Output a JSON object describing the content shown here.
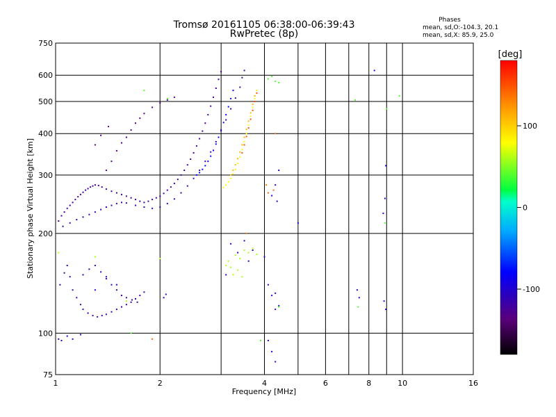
{
  "chart_data": {
    "type": "scatter",
    "title": "Tromsø 20161105 06:38:00-06:39:43",
    "subtitle": "RwPretec (8p)",
    "phases_header": "Phases",
    "phases_o": "mean, sd,O:-104.3, 20.1",
    "phases_x": "mean, sd,X:  85.9, 25.0",
    "xlabel": "Frequency [MHz]",
    "ylabel": "Stationary phase Virtual Height [km]",
    "x_scale": "log",
    "y_scale": "log",
    "xlim": [
      1,
      16
    ],
    "ylim": [
      75,
      750
    ],
    "x_ticks": [
      1,
      2,
      4,
      6,
      8,
      10,
      16
    ],
    "x_minor": [
      3,
      5,
      7,
      9
    ],
    "y_ticks": [
      75,
      100,
      200,
      300,
      400,
      500,
      600,
      750
    ],
    "grid": true,
    "colorbar": {
      "label": "[deg]",
      "range": [
        -180,
        180
      ],
      "ticks": [
        100,
        0,
        -100
      ]
    },
    "series": [
      {
        "phase": -120,
        "points": [
          [
            1.02,
            218
          ],
          [
            1.04,
            226
          ],
          [
            1.06,
            232
          ],
          [
            1.08,
            238
          ],
          [
            1.1,
            243
          ],
          [
            1.12,
            248
          ],
          [
            1.14,
            253
          ],
          [
            1.16,
            258
          ],
          [
            1.18,
            262
          ],
          [
            1.2,
            266
          ],
          [
            1.22,
            270
          ],
          [
            1.24,
            273
          ],
          [
            1.26,
            276
          ],
          [
            1.28,
            278
          ],
          [
            1.3,
            280
          ],
          [
            1.33,
            279
          ],
          [
            1.36,
            276
          ],
          [
            1.4,
            272
          ],
          [
            1.45,
            268
          ],
          [
            1.5,
            265
          ],
          [
            1.55,
            262
          ],
          [
            1.6,
            259
          ],
          [
            1.65,
            256
          ],
          [
            1.7,
            253
          ],
          [
            1.75,
            250
          ],
          [
            1.8,
            248
          ],
          [
            1.85,
            250
          ],
          [
            1.9,
            253
          ],
          [
            1.95,
            256
          ],
          [
            2.0,
            259
          ],
          [
            2.05,
            264
          ],
          [
            2.1,
            270
          ],
          [
            2.15,
            276
          ],
          [
            2.2,
            283
          ],
          [
            2.25,
            291
          ],
          [
            2.3,
            300
          ],
          [
            2.35,
            310
          ],
          [
            2.4,
            322
          ],
          [
            2.45,
            335
          ],
          [
            2.5,
            350
          ],
          [
            2.55,
            367
          ],
          [
            2.6,
            386
          ],
          [
            2.65,
            407
          ],
          [
            2.7,
            430
          ],
          [
            2.75,
            456
          ],
          [
            2.8,
            484
          ],
          [
            2.85,
            515
          ],
          [
            2.9,
            548
          ],
          [
            2.95,
            583
          ],
          [
            3.0,
            615
          ]
        ]
      },
      {
        "phase": -115,
        "points": [
          [
            1.05,
            210
          ],
          [
            1.1,
            215
          ],
          [
            1.15,
            220
          ],
          [
            1.2,
            224
          ],
          [
            1.25,
            228
          ],
          [
            1.3,
            232
          ],
          [
            1.35,
            236
          ],
          [
            1.4,
            240
          ],
          [
            1.45,
            243
          ],
          [
            1.5,
            246
          ],
          [
            1.55,
            248
          ],
          [
            1.6,
            247
          ],
          [
            1.7,
            243
          ],
          [
            1.8,
            240
          ],
          [
            1.9,
            238
          ],
          [
            2.0,
            240
          ],
          [
            2.1,
            246
          ],
          [
            2.2,
            254
          ],
          [
            2.3,
            265
          ],
          [
            2.4,
            278
          ],
          [
            2.5,
            293
          ],
          [
            2.6,
            310
          ],
          [
            2.7,
            330
          ],
          [
            2.8,
            352
          ],
          [
            2.9,
            378
          ],
          [
            3.0,
            408
          ],
          [
            3.1,
            440
          ],
          [
            3.2,
            475
          ],
          [
            3.3,
            512
          ],
          [
            3.4,
            552
          ],
          [
            3.45,
            590
          ],
          [
            3.5,
            620
          ]
        ]
      },
      {
        "phase": -80,
        "points": [
          [
            2.55,
            300
          ],
          [
            2.6,
            305
          ],
          [
            2.65,
            312
          ],
          [
            2.7,
            320
          ],
          [
            2.75,
            330
          ],
          [
            2.8,
            342
          ],
          [
            2.85,
            356
          ],
          [
            2.9,
            372
          ],
          [
            2.95,
            390
          ],
          [
            3.0,
            410
          ],
          [
            3.05,
            432
          ],
          [
            3.1,
            456
          ],
          [
            3.15,
            482
          ],
          [
            3.2,
            510
          ],
          [
            3.25,
            540
          ]
        ]
      },
      {
        "phase": -115,
        "points": [
          [
            1.03,
            140
          ],
          [
            1.06,
            152
          ],
          [
            1.08,
            160
          ],
          [
            1.1,
            148
          ],
          [
            1.12,
            135
          ],
          [
            1.15,
            128
          ],
          [
            1.18,
            122
          ],
          [
            1.2,
            118
          ],
          [
            1.24,
            115
          ],
          [
            1.28,
            113
          ],
          [
            1.32,
            112
          ],
          [
            1.36,
            113
          ],
          [
            1.4,
            114
          ],
          [
            1.45,
            116
          ],
          [
            1.5,
            118
          ],
          [
            1.55,
            120
          ],
          [
            1.6,
            122
          ],
          [
            1.65,
            124
          ],
          [
            1.7,
            127
          ],
          [
            1.75,
            130
          ],
          [
            1.8,
            133
          ],
          [
            1.2,
            150
          ],
          [
            1.25,
            156
          ],
          [
            1.3,
            160
          ],
          [
            1.35,
            153
          ],
          [
            1.4,
            146
          ],
          [
            1.45,
            140
          ],
          [
            1.5,
            135
          ],
          [
            1.55,
            130
          ],
          [
            1.6,
            128
          ],
          [
            1.66,
            126
          ],
          [
            1.72,
            124
          ],
          [
            2.05,
            128
          ],
          [
            2.08,
            131
          ]
        ]
      },
      {
        "phase": -100,
        "points": [
          [
            1.02,
            96
          ],
          [
            1.04,
            95
          ],
          [
            1.08,
            98
          ],
          [
            1.12,
            96
          ],
          [
            1.18,
            99
          ],
          [
            1.3,
            135
          ],
          [
            1.4,
            148
          ],
          [
            1.5,
            140
          ]
        ]
      },
      {
        "phase": -130,
        "points": [
          [
            1.4,
            310
          ],
          [
            1.45,
            330
          ],
          [
            1.5,
            355
          ],
          [
            1.55,
            375
          ],
          [
            1.6,
            390
          ],
          [
            1.65,
            410
          ],
          [
            1.7,
            430
          ],
          [
            1.75,
            445
          ],
          [
            1.8,
            460
          ],
          [
            1.9,
            480
          ],
          [
            2.0,
            495
          ],
          [
            2.1,
            505
          ],
          [
            2.2,
            515
          ],
          [
            1.3,
            370
          ],
          [
            1.35,
            395
          ],
          [
            1.42,
            420
          ]
        ]
      },
      {
        "phase": 80,
        "points": [
          [
            3.05,
            275
          ],
          [
            3.1,
            280
          ],
          [
            3.15,
            286
          ],
          [
            3.2,
            293
          ],
          [
            3.25,
            302
          ],
          [
            3.3,
            312
          ],
          [
            3.35,
            325
          ],
          [
            3.4,
            340
          ],
          [
            3.45,
            358
          ],
          [
            3.5,
            378
          ],
          [
            3.55,
            400
          ],
          [
            3.6,
            425
          ],
          [
            3.65,
            452
          ],
          [
            3.7,
            480
          ],
          [
            3.75,
            510
          ],
          [
            3.8,
            540
          ]
        ]
      },
      {
        "phase": 110,
        "points": [
          [
            3.2,
            300
          ],
          [
            3.25,
            310
          ],
          [
            3.3,
            322
          ],
          [
            3.35,
            336
          ],
          [
            3.4,
            352
          ],
          [
            3.45,
            370
          ],
          [
            3.5,
            390
          ],
          [
            3.55,
            412
          ],
          [
            3.6,
            436
          ],
          [
            3.65,
            462
          ],
          [
            3.7,
            490
          ],
          [
            3.75,
            520
          ]
        ]
      },
      {
        "phase": 150,
        "points": [
          [
            3.45,
            350
          ],
          [
            3.5,
            370
          ],
          [
            3.55,
            392
          ],
          [
            3.6,
            416
          ],
          [
            3.65,
            442
          ],
          [
            3.7,
            470
          ],
          [
            3.75,
            500
          ],
          [
            3.8,
            530
          ]
        ]
      },
      {
        "phase": 60,
        "points": [
          [
            3.1,
            160
          ],
          [
            3.15,
            165
          ],
          [
            3.2,
            158
          ],
          [
            3.3,
            172
          ],
          [
            3.4,
            168
          ],
          [
            3.5,
            178
          ],
          [
            3.6,
            175
          ],
          [
            3.7,
            180
          ],
          [
            3.8,
            173
          ],
          [
            3.25,
            150
          ],
          [
            3.35,
            155
          ],
          [
            3.45,
            148
          ],
          [
            1.3,
            170
          ],
          [
            1.6,
            125
          ],
          [
            2.0,
            168
          ],
          [
            1.02,
            175
          ]
        ]
      },
      {
        "phase": -100,
        "points": [
          [
            3.1,
            150
          ],
          [
            3.2,
            186
          ],
          [
            3.35,
            175
          ],
          [
            3.5,
            190
          ],
          [
            3.6,
            165
          ],
          [
            3.7,
            178
          ],
          [
            4.0,
            170
          ],
          [
            4.1,
            140
          ],
          [
            4.2,
            130
          ],
          [
            4.3,
            132
          ],
          [
            4.4,
            121
          ],
          [
            4.3,
            118
          ],
          [
            4.1,
            95
          ],
          [
            4.2,
            88
          ],
          [
            4.3,
            82
          ],
          [
            4.4,
            310
          ],
          [
            4.3,
            280
          ],
          [
            4.2,
            260
          ],
          [
            4.35,
            250
          ],
          [
            5.0,
            215
          ],
          [
            7.4,
            135
          ],
          [
            7.5,
            128
          ],
          [
            8.3,
            620
          ],
          [
            8.8,
            230
          ],
          [
            8.9,
            255
          ],
          [
            8.95,
            320
          ],
          [
            8.85,
            125
          ],
          [
            8.95,
            118
          ]
        ]
      },
      {
        "phase": 40,
        "points": [
          [
            4.1,
            585
          ],
          [
            4.2,
            595
          ],
          [
            4.3,
            575
          ],
          [
            4.4,
            570
          ],
          [
            7.3,
            505
          ],
          [
            9.0,
            475
          ],
          [
            9.8,
            520
          ],
          [
            8.9,
            215
          ],
          [
            7.45,
            120
          ],
          [
            4.4,
            120
          ],
          [
            3.9,
            95
          ],
          [
            1.65,
            100
          ],
          [
            1.8,
            540
          ],
          [
            2.1,
            510
          ]
        ]
      },
      {
        "phase": 140,
        "points": [
          [
            4.05,
            280
          ],
          [
            4.1,
            265
          ],
          [
            4.25,
            270
          ],
          [
            1.9,
            96
          ],
          [
            3.55,
            200
          ],
          [
            4.3,
            400
          ]
        ]
      }
    ]
  }
}
